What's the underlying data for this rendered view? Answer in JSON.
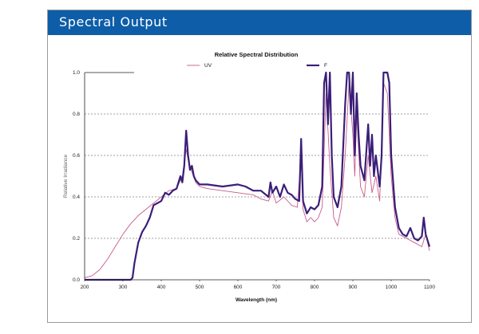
{
  "header": {
    "title": "Spectral Output"
  },
  "colors": {
    "header_bg": "#0d5da8",
    "uv": "#c85a8c",
    "f": "#3a1f78",
    "grid": "#444444"
  },
  "chart_data": {
    "type": "line",
    "title": "Relative Spectral Distribution",
    "xlabel": "Wavelength (nm)",
    "ylabel": "Relative Irradiance",
    "xlim": [
      200,
      1100
    ],
    "ylim": [
      0,
      1.0
    ],
    "xticks": [
      200,
      300,
      400,
      500,
      600,
      700,
      800,
      900,
      1000,
      1100
    ],
    "yticks": [
      0.0,
      0.2,
      0.4,
      0.6,
      0.8,
      1.0
    ],
    "ytick_labels": [
      "0.0",
      "0.2",
      "0.4",
      "0.6",
      "0.8",
      "1.0"
    ],
    "grid": "horizontal dashed",
    "legend": "top",
    "series": [
      {
        "name": "UV",
        "points": [
          [
            200,
            0.01
          ],
          [
            220,
            0.02
          ],
          [
            240,
            0.05
          ],
          [
            260,
            0.1
          ],
          [
            280,
            0.16
          ],
          [
            300,
            0.22
          ],
          [
            320,
            0.27
          ],
          [
            340,
            0.31
          ],
          [
            360,
            0.34
          ],
          [
            380,
            0.37
          ],
          [
            400,
            0.4
          ],
          [
            420,
            0.43
          ],
          [
            440,
            0.44
          ],
          [
            455,
            0.5
          ],
          [
            465,
            0.63
          ],
          [
            470,
            0.58
          ],
          [
            480,
            0.52
          ],
          [
            490,
            0.47
          ],
          [
            500,
            0.45
          ],
          [
            520,
            0.44
          ],
          [
            560,
            0.43
          ],
          [
            600,
            0.42
          ],
          [
            640,
            0.41
          ],
          [
            660,
            0.39
          ],
          [
            680,
            0.38
          ],
          [
            690,
            0.43
          ],
          [
            700,
            0.37
          ],
          [
            720,
            0.4
          ],
          [
            740,
            0.36
          ],
          [
            755,
            0.35
          ],
          [
            765,
            0.6
          ],
          [
            770,
            0.34
          ],
          [
            780,
            0.28
          ],
          [
            790,
            0.3
          ],
          [
            800,
            0.28
          ],
          [
            810,
            0.3
          ],
          [
            820,
            0.35
          ],
          [
            830,
            0.9
          ],
          [
            840,
            0.55
          ],
          [
            850,
            0.3
          ],
          [
            860,
            0.26
          ],
          [
            870,
            0.35
          ],
          [
            880,
            0.6
          ],
          [
            890,
            0.95
          ],
          [
            900,
            0.7
          ],
          [
            905,
            0.5
          ],
          [
            910,
            0.8
          ],
          [
            920,
            0.45
          ],
          [
            930,
            0.4
          ],
          [
            940,
            0.6
          ],
          [
            950,
            0.42
          ],
          [
            960,
            0.5
          ],
          [
            970,
            0.38
          ],
          [
            980,
            0.95
          ],
          [
            990,
            0.9
          ],
          [
            1000,
            0.5
          ],
          [
            1010,
            0.3
          ],
          [
            1020,
            0.22
          ],
          [
            1040,
            0.2
          ],
          [
            1060,
            0.18
          ],
          [
            1080,
            0.16
          ],
          [
            1090,
            0.22
          ],
          [
            1100,
            0.14
          ]
        ]
      },
      {
        "name": "F",
        "points": [
          [
            200,
            0.0
          ],
          [
            250,
            0.0
          ],
          [
            300,
            0.0
          ],
          [
            320,
            0.0
          ],
          [
            325,
            0.01
          ],
          [
            330,
            0.08
          ],
          [
            340,
            0.18
          ],
          [
            350,
            0.23
          ],
          [
            360,
            0.26
          ],
          [
            370,
            0.3
          ],
          [
            380,
            0.36
          ],
          [
            390,
            0.37
          ],
          [
            400,
            0.38
          ],
          [
            410,
            0.42
          ],
          [
            420,
            0.41
          ],
          [
            430,
            0.43
          ],
          [
            440,
            0.44
          ],
          [
            450,
            0.5
          ],
          [
            455,
            0.47
          ],
          [
            460,
            0.55
          ],
          [
            465,
            0.72
          ],
          [
            470,
            0.6
          ],
          [
            475,
            0.53
          ],
          [
            480,
            0.55
          ],
          [
            485,
            0.5
          ],
          [
            490,
            0.48
          ],
          [
            500,
            0.46
          ],
          [
            520,
            0.46
          ],
          [
            560,
            0.45
          ],
          [
            600,
            0.46
          ],
          [
            620,
            0.45
          ],
          [
            640,
            0.43
          ],
          [
            660,
            0.43
          ],
          [
            680,
            0.4
          ],
          [
            685,
            0.47
          ],
          [
            690,
            0.42
          ],
          [
            700,
            0.45
          ],
          [
            710,
            0.4
          ],
          [
            720,
            0.46
          ],
          [
            730,
            0.42
          ],
          [
            740,
            0.41
          ],
          [
            750,
            0.39
          ],
          [
            760,
            0.38
          ],
          [
            765,
            0.68
          ],
          [
            770,
            0.38
          ],
          [
            780,
            0.32
          ],
          [
            790,
            0.35
          ],
          [
            800,
            0.34
          ],
          [
            810,
            0.36
          ],
          [
            820,
            0.45
          ],
          [
            825,
            0.95
          ],
          [
            830,
            1.0
          ],
          [
            835,
            0.75
          ],
          [
            840,
            1.0
          ],
          [
            845,
            0.6
          ],
          [
            850,
            0.4
          ],
          [
            860,
            0.35
          ],
          [
            870,
            0.45
          ],
          [
            880,
            0.85
          ],
          [
            885,
            1.0
          ],
          [
            890,
            1.0
          ],
          [
            895,
            0.8
          ],
          [
            900,
            1.0
          ],
          [
            905,
            0.6
          ],
          [
            910,
            0.9
          ],
          [
            915,
            0.7
          ],
          [
            920,
            0.55
          ],
          [
            930,
            0.48
          ],
          [
            940,
            0.75
          ],
          [
            945,
            0.55
          ],
          [
            950,
            0.7
          ],
          [
            955,
            0.5
          ],
          [
            960,
            0.6
          ],
          [
            970,
            0.45
          ],
          [
            975,
            0.6
          ],
          [
            980,
            1.0
          ],
          [
            985,
            1.0
          ],
          [
            990,
            1.0
          ],
          [
            995,
            0.95
          ],
          [
            1000,
            0.6
          ],
          [
            1010,
            0.35
          ],
          [
            1020,
            0.25
          ],
          [
            1030,
            0.22
          ],
          [
            1040,
            0.21
          ],
          [
            1050,
            0.25
          ],
          [
            1060,
            0.2
          ],
          [
            1070,
            0.19
          ],
          [
            1080,
            0.21
          ],
          [
            1085,
            0.3
          ],
          [
            1090,
            0.22
          ],
          [
            1100,
            0.16
          ]
        ]
      }
    ]
  }
}
